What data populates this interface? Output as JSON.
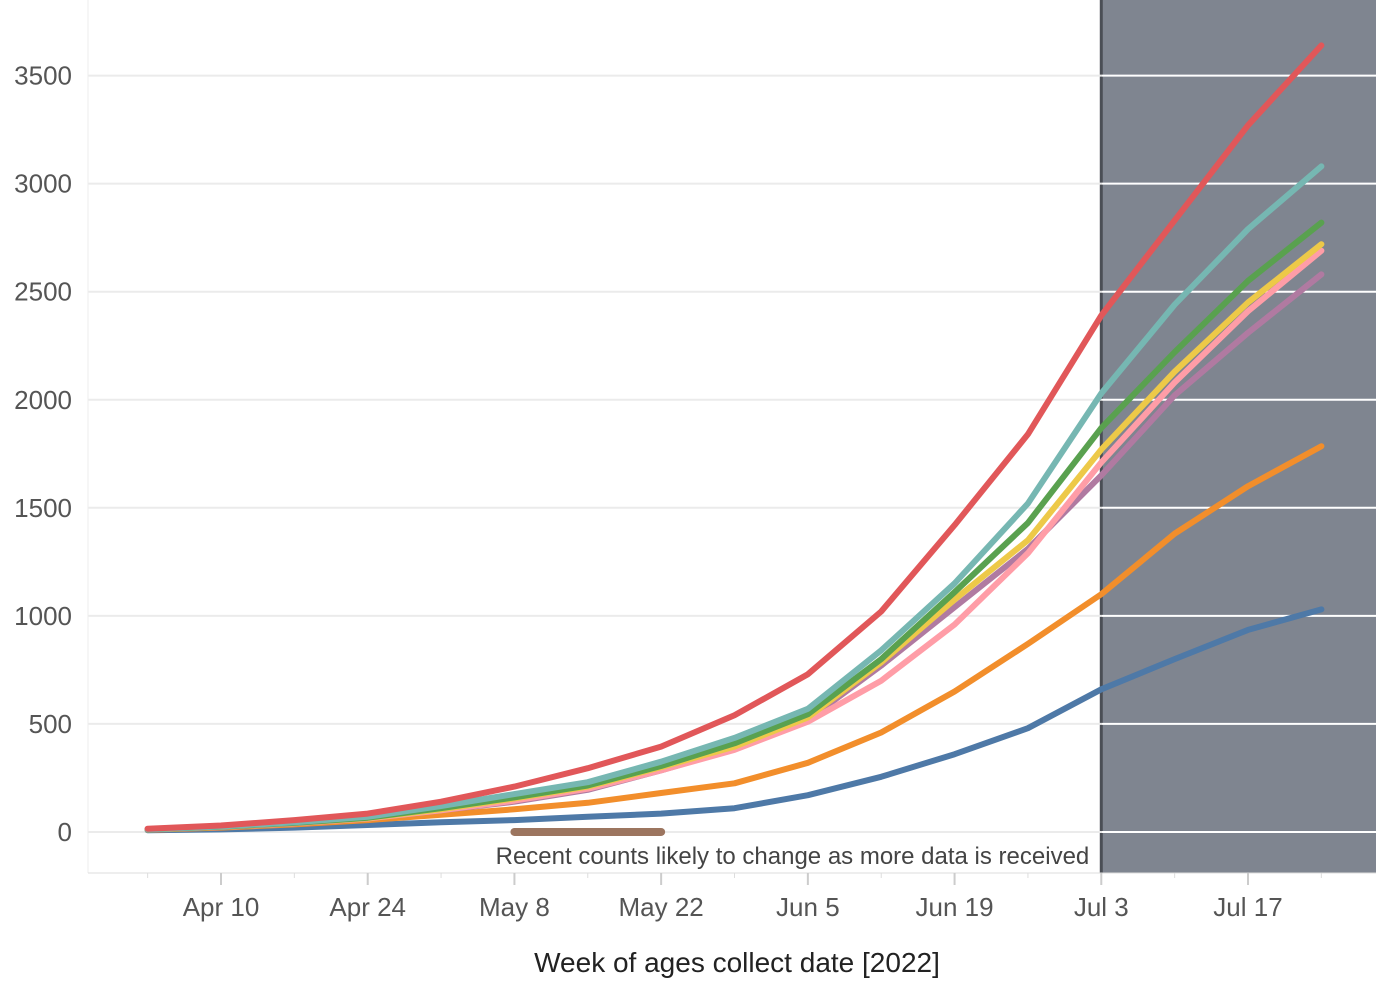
{
  "chart_data": {
    "type": "line",
    "xlabel": "Week of ages collect date [2022]",
    "ylabel": "",
    "ylim": [
      -190,
      3850
    ],
    "x_ticks": [
      "Apr 10",
      "Apr 24",
      "May 8",
      "May 22",
      "Jun 5",
      "Jun 19",
      "Jul 3",
      "Jul 17"
    ],
    "y_ticks": [
      0,
      500,
      1000,
      1500,
      2000,
      2500,
      3000,
      3500
    ],
    "grid": true,
    "x": [
      "2022-04-03",
      "2022-04-10",
      "2022-04-17",
      "2022-04-24",
      "2022-05-01",
      "2022-05-08",
      "2022-05-15",
      "2022-05-22",
      "2022-05-29",
      "2022-06-05",
      "2022-06-12",
      "2022-06-19",
      "2022-06-26",
      "2022-07-03",
      "2022-07-10",
      "2022-07-17",
      "2022-07-24"
    ],
    "series": [
      {
        "color": "#e15759",
        "values": [
          15,
          30,
          55,
          85,
          140,
          210,
          295,
          395,
          540,
          730,
          1020,
          1420,
          1840,
          2390,
          2830,
          3270,
          3640
        ]
      },
      {
        "color": "#76b7b2",
        "values": [
          12,
          25,
          45,
          70,
          120,
          175,
          230,
          325,
          435,
          570,
          840,
          1150,
          1520,
          2030,
          2440,
          2790,
          3080
        ]
      },
      {
        "color": "#59a14f",
        "values": [
          12,
          24,
          42,
          66,
          110,
          160,
          215,
          305,
          410,
          545,
          800,
          1110,
          1430,
          1870,
          2220,
          2550,
          2820
        ]
      },
      {
        "color": "#edc948",
        "values": [
          12,
          24,
          42,
          64,
          105,
          155,
          210,
          300,
          395,
          530,
          785,
          1075,
          1350,
          1770,
          2130,
          2450,
          2720
        ]
      },
      {
        "color": "#ff9da7",
        "values": [
          12,
          23,
          40,
          62,
          100,
          145,
          200,
          285,
          380,
          510,
          700,
          960,
          1290,
          1710,
          2080,
          2410,
          2690
        ]
      },
      {
        "color": "#b07aa1",
        "values": [
          12,
          23,
          40,
          62,
          100,
          140,
          195,
          285,
          385,
          520,
          770,
          1040,
          1310,
          1650,
          2020,
          2310,
          2580
        ]
      },
      {
        "color": "#f28e2b",
        "values": [
          10,
          20,
          35,
          55,
          80,
          105,
          135,
          180,
          225,
          320,
          460,
          650,
          870,
          1100,
          1380,
          1600,
          1785
        ]
      },
      {
        "color": "#4e79a7",
        "values": [
          8,
          12,
          20,
          32,
          45,
          55,
          70,
          85,
          110,
          170,
          255,
          360,
          480,
          660,
          800,
          935,
          1030
        ]
      }
    ],
    "annotation": "Recent counts likely to change as more data is received",
    "annotation_bar": {
      "from": "2022-05-08",
      "to": "2022-05-22",
      "color": "#9c755f"
    },
    "shaded_region": {
      "from": "2022-07-03",
      "color": "#7f8590"
    }
  }
}
